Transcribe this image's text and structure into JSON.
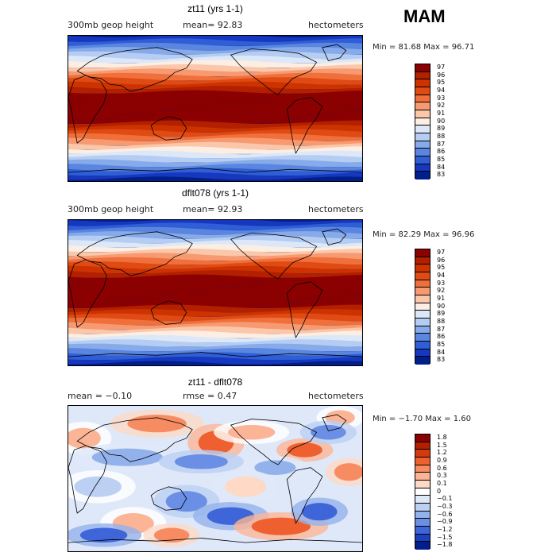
{
  "season": "MAM",
  "panels": [
    {
      "title": "zt11 (yrs 1-1)",
      "left_label": "300mb geop height",
      "mid_label": "mean=  92.83",
      "right_label": "hectometers",
      "minmax": "Min =  81.68  Max =  96.71",
      "levels": [
        "97",
        "96",
        "95",
        "94",
        "93",
        "92",
        "91",
        "90",
        "89",
        "88",
        "87",
        "86",
        "85",
        "84",
        "83"
      ]
    },
    {
      "title": "dflt078 (yrs 1-1)",
      "left_label": "300mb geop height",
      "mid_label": "mean=  92.93",
      "right_label": "hectometers",
      "minmax": "Min =  82.29  Max =  96.96",
      "levels": [
        "97",
        "96",
        "95",
        "94",
        "93",
        "92",
        "91",
        "90",
        "89",
        "88",
        "87",
        "86",
        "85",
        "84",
        "83"
      ]
    },
    {
      "title": "zt11 - dflt078",
      "left_label": "mean =  −0.10",
      "mid_label": "rmse =   0.47",
      "right_label": "hectometers",
      "minmax": "Min =  −1.70  Max =   1.60",
      "levels": [
        "1.8",
        "1.5",
        "1.2",
        "0.9",
        "0.6",
        "0.3",
        "0.1",
        "0",
        "−0.1",
        "−0.3",
        "−0.6",
        "−0.9",
        "−1.2",
        "−1.5",
        "−1.8"
      ]
    }
  ],
  "colors": {
    "field_scale": [
      "#8b0000",
      "#b22000",
      "#cc3300",
      "#e04a14",
      "#f0703c",
      "#f79a72",
      "#fbc7aa",
      "#fdeee4",
      "#dce8f8",
      "#b5cdf2",
      "#86aaea",
      "#5a86e0",
      "#2f5ed6",
      "#1638c0",
      "#001f8a"
    ],
    "diff_scale": [
      "#8b0000",
      "#b22000",
      "#d43a10",
      "#ef6030",
      "#f78c62",
      "#fbb596",
      "#fdd9c6",
      "#ffffff",
      "#dfe8f9",
      "#bcd0f3",
      "#93b2ec",
      "#6a8fe4",
      "#3e66d8",
      "#1a3fc2",
      "#001f8a"
    ],
    "coast": "#000000"
  }
}
